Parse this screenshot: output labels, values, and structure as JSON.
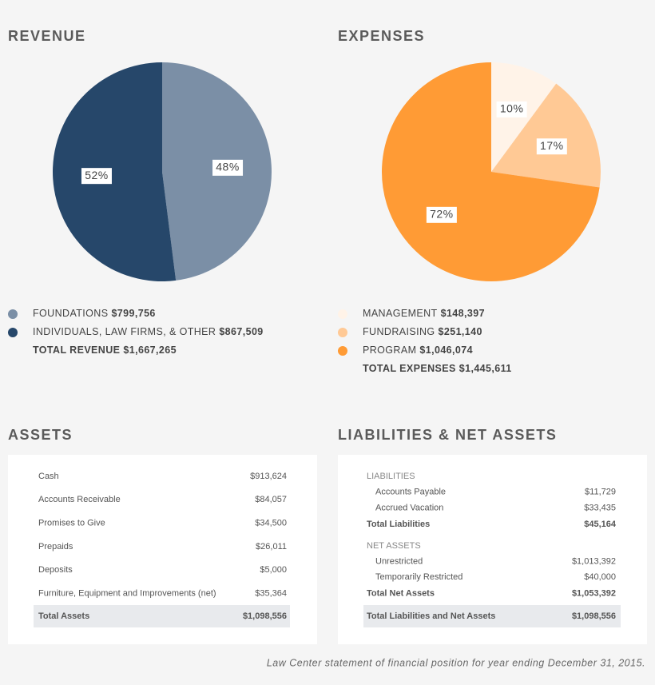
{
  "chart_data": [
    {
      "type": "pie",
      "title": "REVENUE",
      "categories": [
        "FOUNDATIONS",
        "INDIVIDUALS, LAW FIRMS, & OTHER"
      ],
      "amounts": [
        "$799,756",
        "$867,509"
      ],
      "values": [
        48,
        52
      ],
      "value_labels": [
        "48%",
        "52%"
      ],
      "colors": [
        "#7b8fa6",
        "#26476a"
      ],
      "total_label": "TOTAL REVENUE",
      "total": "$1,667,265"
    },
    {
      "type": "pie",
      "title": "EXPENSES",
      "categories": [
        "MANAGEMENT",
        "FUNDRAISING",
        "PROGRAM"
      ],
      "amounts": [
        "$148,397",
        "$251,140",
        "$1,046,074"
      ],
      "values": [
        10,
        17,
        72
      ],
      "value_labels": [
        "10%",
        "17%",
        "72%"
      ],
      "colors": [
        "#fff3e8",
        "#ffc995",
        "#ff9b35"
      ],
      "total_label": "TOTAL EXPENSES",
      "total": "$1,445,611"
    }
  ],
  "assets": {
    "title": "ASSETS",
    "rows": [
      [
        "Cash",
        "$913,624"
      ],
      [
        "Accounts Receivable",
        "$84,057"
      ],
      [
        "Promises to Give",
        "$34,500"
      ],
      [
        "Prepaids",
        "$26,011"
      ],
      [
        "Deposits",
        "$5,000"
      ],
      [
        "Furniture, Equipment and Improvements (net)",
        "$35,364"
      ]
    ],
    "total": [
      "Total Assets",
      "$1,098,556"
    ]
  },
  "liabilities": {
    "title": "LIABILITIES & NET ASSETS",
    "sections": [
      {
        "heading": "LIABILITIES",
        "rows": [
          [
            "Accounts Payable",
            "$11,729"
          ],
          [
            "Accrued Vacation",
            "$33,435"
          ]
        ],
        "total": [
          "Total Liabilities",
          "$45,164"
        ]
      },
      {
        "heading": "NET ASSETS",
        "rows": [
          [
            "Unrestricted",
            "$1,013,392"
          ],
          [
            "Temporarily Restricted",
            "$40,000"
          ]
        ],
        "total": [
          "Total Net Assets",
          "$1,053,392"
        ]
      }
    ],
    "grand_total": [
      "Total Liabilities and Net Assets",
      "$1,098,556"
    ]
  },
  "caption": "Law Center statement of financial position for year ending December 31, 2015."
}
